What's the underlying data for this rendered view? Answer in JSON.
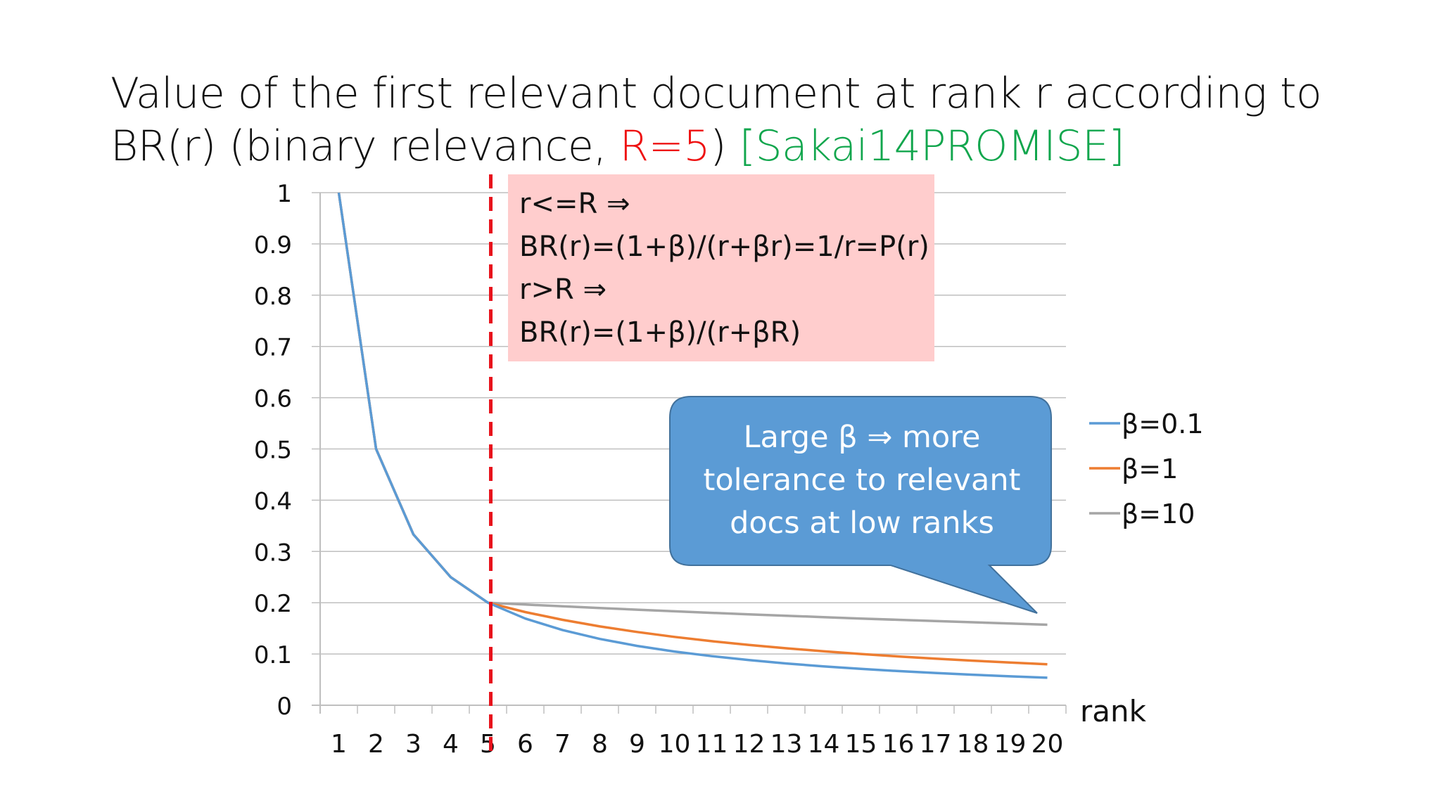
{
  "title": {
    "part1": "Value of the first relevant document at rank r according to BR(r) (binary relevance, ",
    "part2": "R=5",
    "part3": ") ",
    "part4": "[Sakai14PROMISE]"
  },
  "info_box": {
    "line1": "r<=R ⇒",
    "line2": "BR(r)=(1+β)/(r+βr)=1/r=P(r)",
    "line3": "r>R ⇒",
    "line4": "BR(r)=(1+β)/(r+βR)"
  },
  "callout": {
    "line1": "Large β ⇒ more",
    "line2": "tolerance to relevant",
    "line3": "docs at low ranks"
  },
  "colors": {
    "beta_0_1": "#5b9bd5",
    "beta_1": "#ed7d31",
    "beta_10": "#a5a5a5",
    "dashed_line": "#e8121c",
    "callout_fill": "#5b9bd5",
    "callout_stroke": "#41719c",
    "info_box_fill": "#ffcdcd"
  },
  "chart_data": {
    "type": "line",
    "xlabel": "rank",
    "ylabel": "",
    "x": [
      1,
      2,
      3,
      4,
      5,
      6,
      7,
      8,
      9,
      10,
      11,
      12,
      13,
      14,
      15,
      16,
      17,
      18,
      19,
      20
    ],
    "y_ticks": [
      "0",
      "0.1",
      "0.2",
      "0.3",
      "0.4",
      "0.5",
      "0.6",
      "0.7",
      "0.8",
      "0.9",
      "1"
    ],
    "ylim": [
      0,
      1
    ],
    "grid": true,
    "legend_position": "right",
    "marker_x": 5,
    "series": [
      {
        "name": "β=0.1",
        "color_key": "beta_0_1",
        "values": [
          1,
          0.5,
          0.3333,
          0.25,
          0.2,
          0.1692,
          0.1467,
          0.1294,
          0.1158,
          0.1048,
          0.0957,
          0.088,
          0.0815,
          0.0759,
          0.071,
          0.0667,
          0.0629,
          0.0595,
          0.0564,
          0.0537
        ]
      },
      {
        "name": "β=1",
        "color_key": "beta_1",
        "values": [
          1,
          0.5,
          0.3333,
          0.25,
          0.2,
          0.1818,
          0.1667,
          0.1538,
          0.1429,
          0.1333,
          0.125,
          0.1176,
          0.1111,
          0.1053,
          0.1,
          0.0952,
          0.0909,
          0.087,
          0.0833,
          0.08
        ]
      },
      {
        "name": "β=10",
        "color_key": "beta_10",
        "values": [
          1,
          0.5,
          0.3333,
          0.25,
          0.2,
          0.1964,
          0.193,
          0.1897,
          0.1864,
          0.1833,
          0.1803,
          0.1774,
          0.1746,
          0.1719,
          0.1692,
          0.1667,
          0.1642,
          0.1618,
          0.1594,
          0.1571
        ]
      }
    ]
  }
}
